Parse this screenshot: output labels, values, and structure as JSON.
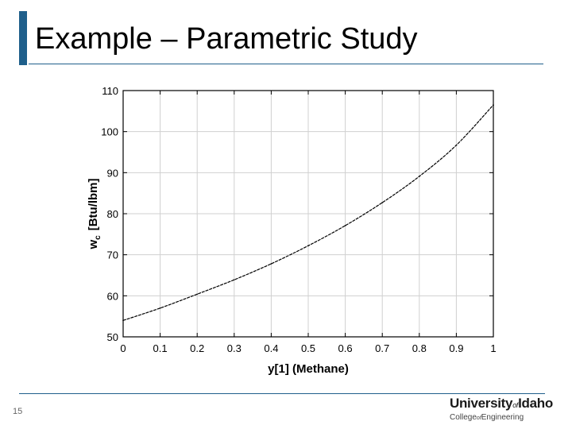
{
  "slide": {
    "title": "Example – Parametric Study",
    "page_number": "15"
  },
  "logo": {
    "university_prefix": "University",
    "of_word": "of",
    "university_suffix": "Idaho",
    "college_prefix": "College",
    "college_of": "of",
    "college_suffix": "Engineering"
  },
  "colors": {
    "accent": "#1f5f8b",
    "grid": "#d0d0d0",
    "curve": "#000000"
  },
  "chart_data": {
    "type": "line",
    "xlabel": "y[1]  (Methane)",
    "ylabel_main": "w",
    "ylabel_sub": "c",
    "ylabel_units": "[Btu/lbm]",
    "xlim": [
      0,
      1
    ],
    "ylim": [
      50,
      110
    ],
    "x_ticks": [
      "0",
      "0.1",
      "0.2",
      "0.3",
      "0.4",
      "0.5",
      "0.6",
      "0.7",
      "0.8",
      "0.9",
      "1"
    ],
    "y_ticks": [
      "50",
      "60",
      "70",
      "80",
      "90",
      "100",
      "110"
    ],
    "grid": true,
    "series": [
      {
        "x": [
          0,
          0.1,
          0.2,
          0.3,
          0.4,
          0.5,
          0.6,
          0.7,
          0.8,
          0.9,
          1.0
        ],
        "values": [
          54.0,
          57.0,
          60.4,
          63.9,
          67.8,
          72.2,
          77.1,
          82.7,
          89.1,
          96.7,
          106.5
        ]
      }
    ]
  }
}
